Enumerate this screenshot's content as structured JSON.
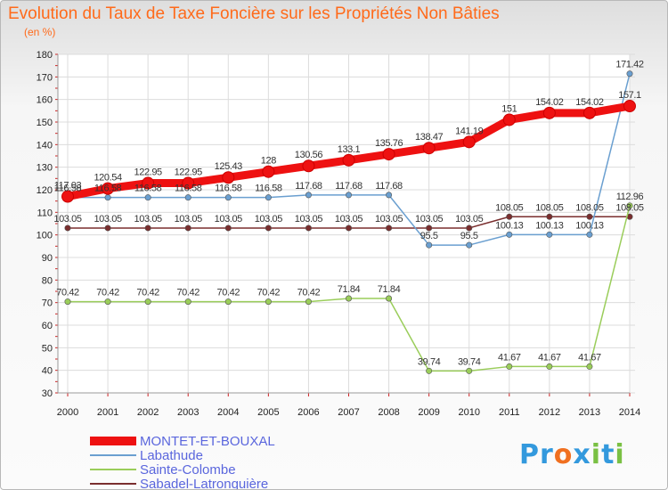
{
  "colors": {
    "title": "#ff6a1a",
    "axis_text": "#222222",
    "axis": "#999999",
    "grid": "#dcdcdc",
    "tick_marks": "#cc2222",
    "legend_text": "#5a66dd"
  },
  "chart_data": {
    "type": "line",
    "title": "Evolution du Taux de Taxe Foncière sur les Propriétés Non Bâties",
    "subtitle": "(en %)",
    "xlabel": "",
    "ylabel": "",
    "x": [
      "2000",
      "2001",
      "2002",
      "2003",
      "2004",
      "2005",
      "2006",
      "2007",
      "2008",
      "2009",
      "2010",
      "2011",
      "2012",
      "2013",
      "2014"
    ],
    "ylim": [
      30,
      180
    ],
    "yticks": [
      30,
      40,
      50,
      60,
      70,
      80,
      90,
      100,
      110,
      120,
      130,
      140,
      150,
      160,
      170,
      180
    ],
    "grid": true,
    "legend_position": "bottom-left",
    "series": [
      {
        "name": "MONTET-ET-BOUXAL",
        "color": "#ee1111",
        "values": [
          117.03,
          120.54,
          122.95,
          122.95,
          125.43,
          128,
          130.56,
          133.1,
          135.76,
          138.47,
          141.19,
          151,
          154.02,
          154.02,
          157.1
        ],
        "labels": [
          "117.03",
          "120.54",
          "122.95",
          "122.95",
          "125.43",
          "128",
          "130.56",
          "133.1",
          "135.76",
          "138.47",
          "141.19",
          "151",
          "154.02",
          "154.02",
          "157.1"
        ]
      },
      {
        "name": "Labathude",
        "color": "#6a9fd0",
        "values": [
          116.58,
          116.58,
          116.58,
          116.58,
          116.58,
          116.58,
          117.68,
          117.68,
          117.68,
          95.5,
          95.5,
          100.13,
          100.13,
          100.13,
          171.42
        ],
        "labels": [
          "116.58",
          "116.58",
          "116.58",
          "116.58",
          "116.58",
          "116.58",
          "117.68",
          "117.68",
          "117.68",
          "95.5",
          "95.5",
          "100.13",
          "100.13",
          "100.13",
          "171.42"
        ]
      },
      {
        "name": "Sainte-Colombe",
        "color": "#9acd5a",
        "values": [
          70.42,
          70.42,
          70.42,
          70.42,
          70.42,
          70.42,
          70.42,
          71.84,
          71.84,
          39.74,
          39.74,
          41.67,
          41.67,
          41.67,
          112.96
        ],
        "labels": [
          "70.42",
          "70.42",
          "70.42",
          "70.42",
          "70.42",
          "70.42",
          "70.42",
          "71.84",
          "71.84",
          "39.74",
          "39.74",
          "41.67",
          "41.67",
          "41.67",
          "112.96"
        ]
      },
      {
        "name": "Sabadel-Latronquière",
        "color": "#7a2e2e",
        "values": [
          103.05,
          103.05,
          103.05,
          103.05,
          103.05,
          103.05,
          103.05,
          103.05,
          103.05,
          103.05,
          103.05,
          108.05,
          108.05,
          108.05,
          108.05
        ],
        "labels": [
          "103.05",
          "103.05",
          "103.05",
          "103.05",
          "103.05",
          "103.05",
          "103.05",
          "103.05",
          "103.05",
          "103.05",
          "103.05",
          "108.05",
          "108.05",
          "108.05",
          "108.05"
        ]
      }
    ]
  },
  "logo": {
    "p1": "Pr",
    "o": "o",
    "x": "x",
    "i": "i",
    "t": "t",
    "i2": "i"
  }
}
